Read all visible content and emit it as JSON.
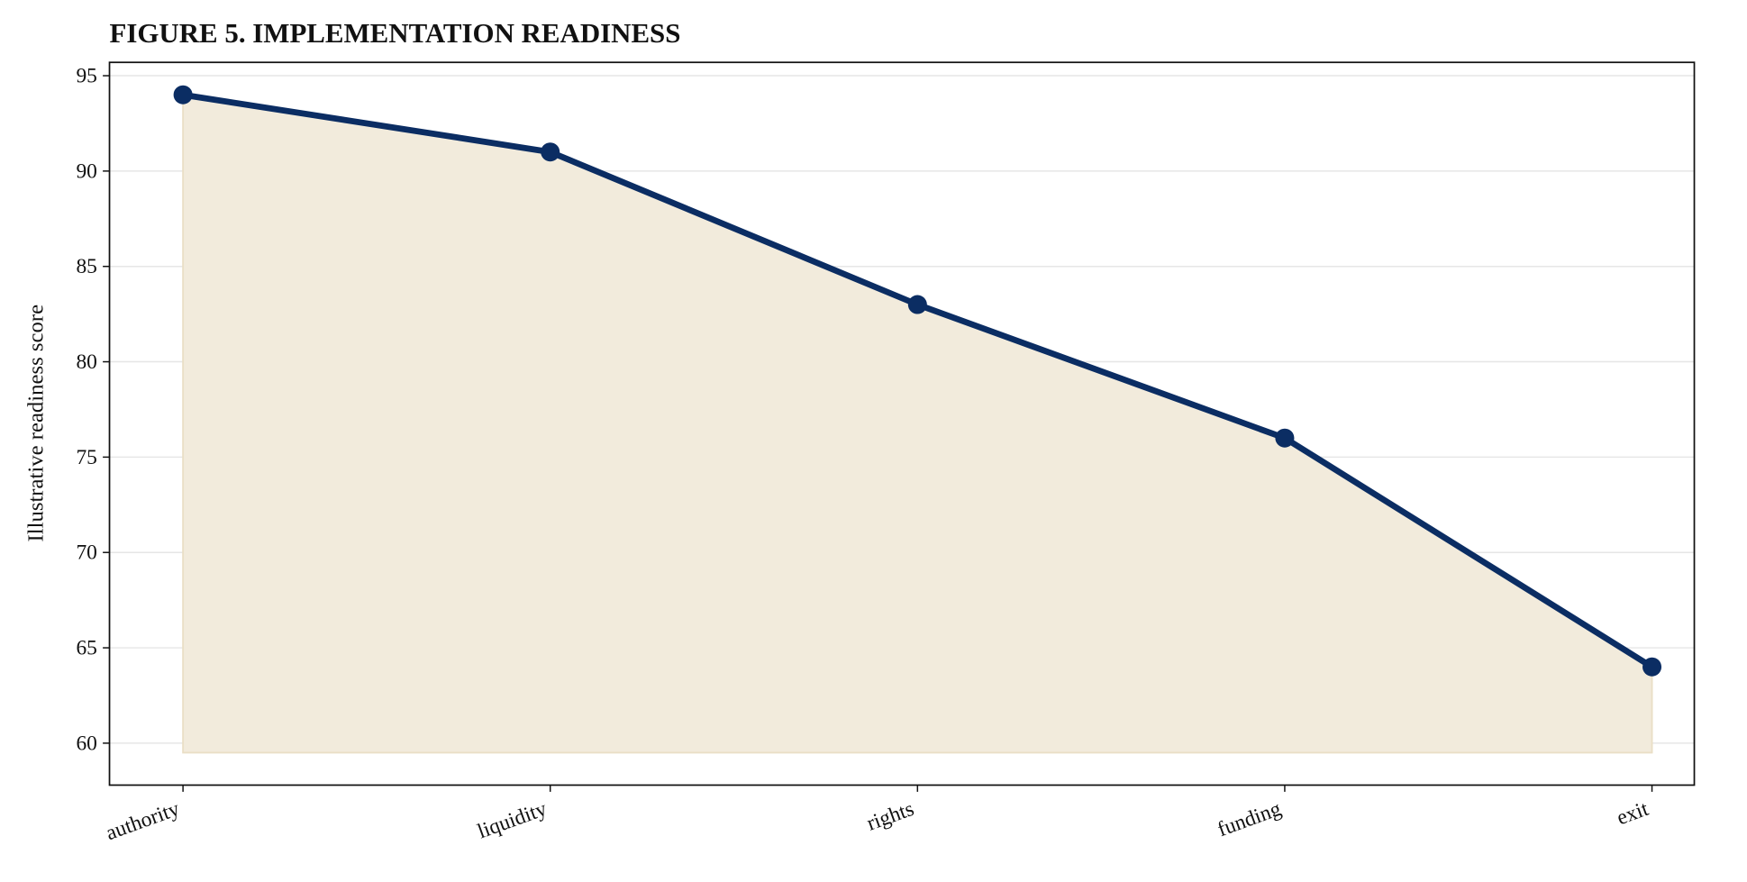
{
  "chart_data": {
    "type": "line",
    "title": "FIGURE 5. IMPLEMENTATION READINESS",
    "y_label": "Illustrative readiness score",
    "categories": [
      "authority",
      "liquidity",
      "rights",
      "funding",
      "exit"
    ],
    "values": [
      94,
      91,
      83,
      76,
      64
    ],
    "color": "#0b2d63",
    "fill_color": "#f2ebdc",
    "fill_baseline": 59.5,
    "ylim": [
      57.8,
      95.7
    ],
    "yticks": [
      60,
      65,
      70,
      75,
      80,
      85,
      90,
      95
    ],
    "grid": true
  }
}
